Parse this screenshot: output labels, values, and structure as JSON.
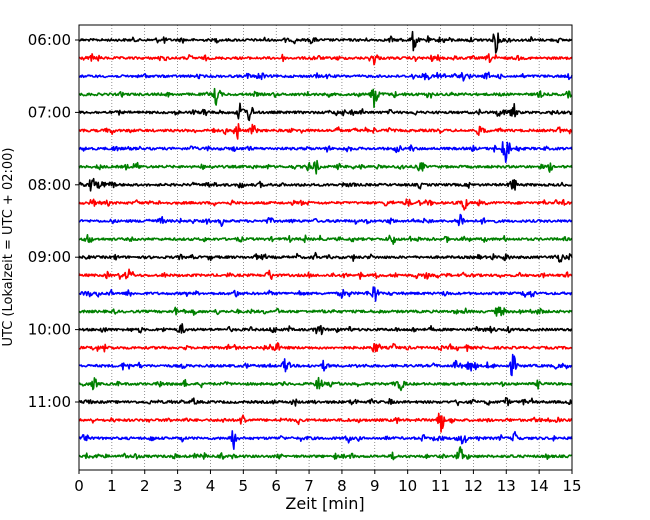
{
  "chart_data": {
    "type": "line",
    "title": "",
    "xlabel": "Zeit  [min]",
    "ylabel": "UTC (Lokalzeit = UTC + 02:00)",
    "xlim": [
      0,
      15
    ],
    "x_ticks": [
      0,
      1,
      2,
      3,
      4,
      5,
      6,
      7,
      8,
      9,
      10,
      11,
      12,
      13,
      14,
      15
    ],
    "y_tick_labels": [
      "06:00",
      "07:00",
      "08:00",
      "09:00",
      "10:00",
      "11:00"
    ],
    "y_tick_rows": [
      0,
      4,
      8,
      12,
      16,
      20
    ],
    "grid_x": true,
    "row_interval_minutes": 15,
    "row_colors": [
      "#000000",
      "#ff0000",
      "#0000ff",
      "#008000"
    ],
    "rows": [
      {
        "start": "06:00",
        "color": "#000000",
        "events": [
          [
            10.2,
            1.0
          ],
          [
            12.7,
            1.4
          ],
          [
            7.1,
            0.35
          ]
        ]
      },
      {
        "start": "06:15",
        "color": "#ff0000",
        "events": [
          [
            9.0,
            0.7
          ],
          [
            12.5,
            0.4
          ]
        ]
      },
      {
        "start": "06:30",
        "color": "#0000ff",
        "events": [
          [
            5.5,
            0.3
          ],
          [
            11.0,
            0.3
          ]
        ]
      },
      {
        "start": "06:45",
        "color": "#008000",
        "events": [
          [
            4.2,
            1.3
          ],
          [
            9.0,
            1.5
          ]
        ]
      },
      {
        "start": "07:00",
        "color": "#000000",
        "events": [
          [
            4.9,
            0.9
          ],
          [
            5.2,
            1.0
          ],
          [
            13.2,
            1.1
          ]
        ]
      },
      {
        "start": "07:15",
        "color": "#ff0000",
        "events": [
          [
            4.8,
            1.0
          ],
          [
            5.3,
            0.6
          ],
          [
            12.3,
            0.4
          ]
        ]
      },
      {
        "start": "07:30",
        "color": "#0000ff",
        "events": [
          [
            13.0,
            1.8
          ],
          [
            9.7,
            0.4
          ]
        ]
      },
      {
        "start": "07:45",
        "color": "#008000",
        "events": [
          [
            7.2,
            0.7
          ],
          [
            10.4,
            0.6
          ]
        ]
      },
      {
        "start": "08:00",
        "color": "#000000",
        "events": [
          [
            0.4,
            0.8
          ],
          [
            13.2,
            0.9
          ]
        ]
      },
      {
        "start": "08:15",
        "color": "#ff0000",
        "events": [
          [
            11.7,
            1.0
          ],
          [
            10.0,
            0.4
          ]
        ]
      },
      {
        "start": "08:30",
        "color": "#0000ff",
        "events": [
          [
            11.6,
            0.9
          ],
          [
            2.5,
            0.4
          ]
        ]
      },
      {
        "start": "08:45",
        "color": "#008000",
        "events": [
          [
            0.3,
            0.4
          ],
          [
            9.5,
            0.5
          ]
        ]
      },
      {
        "start": "09:00",
        "color": "#000000",
        "events": [
          [
            13.0,
            0.4
          ]
        ]
      },
      {
        "start": "09:15",
        "color": "#ff0000",
        "events": [
          [
            1.5,
            0.6
          ],
          [
            5.8,
            0.6
          ]
        ]
      },
      {
        "start": "09:30",
        "color": "#0000ff",
        "events": [
          [
            9.0,
            1.0
          ],
          [
            8.0,
            0.4
          ],
          [
            13.6,
            0.4
          ]
        ]
      },
      {
        "start": "09:45",
        "color": "#008000",
        "events": [
          [
            12.8,
            0.4
          ]
        ]
      },
      {
        "start": "10:00",
        "color": "#000000",
        "events": [
          [
            7.3,
            1.0
          ],
          [
            3.1,
            0.5
          ]
        ]
      },
      {
        "start": "10:15",
        "color": "#ff0000",
        "events": [
          [
            6.0,
            0.6
          ],
          [
            9.0,
            0.5
          ]
        ]
      },
      {
        "start": "10:30",
        "color": "#0000ff",
        "events": [
          [
            6.3,
            0.9
          ],
          [
            11.9,
            0.6
          ],
          [
            13.2,
            1.2
          ]
        ]
      },
      {
        "start": "10:45",
        "color": "#008000",
        "events": [
          [
            7.3,
            0.7
          ],
          [
            9.8,
            0.7
          ]
        ]
      },
      {
        "start": "11:00",
        "color": "#000000",
        "events": [
          [
            3.5,
            0.3
          ],
          [
            13.0,
            0.4
          ]
        ]
      },
      {
        "start": "11:15",
        "color": "#ff0000",
        "events": [
          [
            11.0,
            1.4
          ],
          [
            5.0,
            0.7
          ]
        ]
      },
      {
        "start": "11:30",
        "color": "#0000ff",
        "events": [
          [
            4.7,
            1.1
          ],
          [
            11.7,
            0.7
          ],
          [
            13.3,
            0.8
          ]
        ]
      },
      {
        "start": "11:45",
        "color": "#008000",
        "events": [
          [
            11.6,
            0.9
          ],
          [
            0.3,
            0.4
          ]
        ]
      }
    ]
  }
}
